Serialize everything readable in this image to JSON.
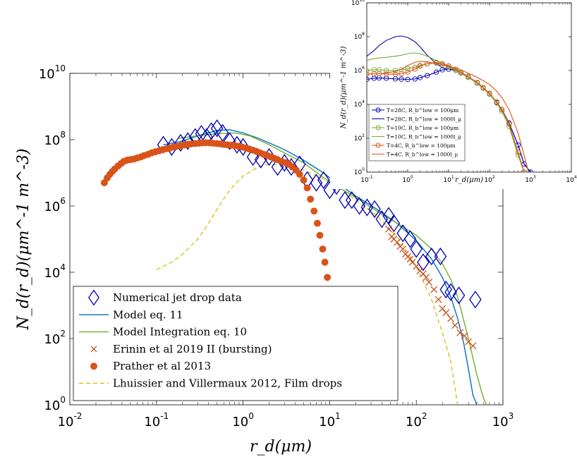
{
  "chart_data": [
    {
      "type": "scatter",
      "xscale": "log",
      "yscale": "log",
      "xlim": [
        0.01,
        1000
      ],
      "ylim": [
        1,
        10000000000.0
      ],
      "x_ticks": [
        0.01,
        0.1,
        1,
        10,
        100,
        1000
      ],
      "y_ticks": [
        1,
        100,
        10000,
        1000000,
        100000000,
        10000000000
      ],
      "x_tick_labels": [
        {
          "base": "10",
          "exp": "-2"
        },
        {
          "base": "10",
          "exp": "-1"
        },
        {
          "base": "10",
          "exp": "0"
        },
        {
          "base": "10",
          "exp": "1"
        },
        {
          "base": "10",
          "exp": "2"
        },
        {
          "base": "10",
          "exp": "3"
        }
      ],
      "y_tick_labels": [
        {
          "base": "10",
          "exp": "0"
        },
        {
          "base": "10",
          "exp": "2"
        },
        {
          "base": "10",
          "exp": "4"
        },
        {
          "base": "10",
          "exp": "6"
        },
        {
          "base": "10",
          "exp": "8"
        },
        {
          "base": "10",
          "exp": "10"
        }
      ],
      "xlabel": "r_d(μm)",
      "ylabel": "N_d(r_d)(μm^-1 m^-3)",
      "legend_position": "bottom-left",
      "series": [
        {
          "name": "Numerical jet drop data",
          "kind": "marker",
          "marker": "diamond-open",
          "color": "#0000b3",
          "x": [
            0.12,
            0.15,
            0.19,
            0.23,
            0.28,
            0.33,
            0.38,
            0.43,
            0.5,
            0.58,
            0.7,
            0.85,
            1.0,
            1.3,
            1.6,
            2.0,
            2.5,
            3.0,
            3.6,
            4.5,
            5.5,
            7.0,
            8.5,
            10,
            12,
            15,
            18,
            22,
            27,
            33,
            40,
            48,
            55,
            70,
            85,
            100,
            120,
            150,
            190,
            220,
            250,
            310,
            480
          ],
          "y": [
            70000000.0,
            60000000.0,
            80000000.0,
            90000000.0,
            120000000.0,
            150000000.0,
            120000000.0,
            180000000.0,
            220000000.0,
            160000000.0,
            90000000.0,
            70000000.0,
            60000000.0,
            30000000.0,
            25000000.0,
            30000000.0,
            15000000.0,
            20000000.0,
            15000000.0,
            18000000.0,
            6000000.0,
            5000000.0,
            6000000.0,
            3000000.0,
            4000000.0,
            1500000.0,
            1500000.0,
            1000000.0,
            900000.0,
            800000.0,
            400000.0,
            500000.0,
            300000.0,
            150000.0,
            100000.0,
            50000.0,
            20000.0,
            30000.0,
            30000.0,
            3000.0,
            2500.0,
            2000.0,
            1500.0
          ]
        },
        {
          "name": "Model eq. 11",
          "kind": "line",
          "color": "#0072bd",
          "x": [
            0.12,
            0.2,
            0.3,
            0.5,
            0.7,
            1.0,
            1.5,
            2,
            3,
            5,
            8,
            12,
            20,
            35,
            60,
            100,
            150,
            200,
            250,
            300,
            350,
            400,
            450,
            500
          ],
          "y": [
            70000000.0,
            90000000.0,
            130000000.0,
            190000000.0,
            200000000.0,
            160000000.0,
            110000000.0,
            80000000.0,
            50000000.0,
            24000000.0,
            11000000.0,
            5000000.0,
            2000000.0,
            800000.0,
            300000.0,
            90000.0,
            25000.0,
            7000,
            1800,
            400,
            80,
            12,
            2,
            1
          ]
        },
        {
          "name": "Model Integration eq. 10",
          "kind": "line",
          "color": "#77ac30",
          "x": [
            0.18,
            0.3,
            0.5,
            0.8,
            1.2,
            2,
            3,
            5,
            8,
            12,
            20,
            35,
            60,
            100,
            150,
            200,
            250,
            300,
            400,
            500,
            600,
            650
          ],
          "y": [
            110000000.0,
            130000000.0,
            150000000.0,
            160000000.0,
            130000000.0,
            70000000.0,
            40000000.0,
            20000000.0,
            8000000.0,
            4000000.0,
            1800000.0,
            700000.0,
            300000.0,
            130000.0,
            50000.0,
            18000.0,
            6000,
            1800,
            100,
            8,
            1.5,
            1
          ]
        },
        {
          "name": "Erinin et al 2019 II (bursting)",
          "kind": "marker",
          "marker": "x",
          "color": "#c8501e",
          "x": [
            48,
            52,
            55,
            60,
            65,
            70,
            75,
            80,
            85,
            90,
            100,
            110,
            120,
            130,
            140,
            160,
            180,
            200,
            220,
            250,
            280,
            320,
            360,
            400,
            450
          ],
          "y": [
            200000.0,
            120000.0,
            100000.0,
            80000.0,
            60000.0,
            50000.0,
            35000.0,
            30000.0,
            25000.0,
            20000.0,
            15000.0,
            11000.0,
            9000,
            7000,
            5000,
            3000,
            1500,
            800,
            600,
            400,
            250,
            150,
            120,
            80,
            60
          ]
        },
        {
          "name": "Prather et al 2013",
          "kind": "marker",
          "marker": "circle-filled",
          "color": "#d95319",
          "x": [
            0.025,
            0.027,
            0.029,
            0.031,
            0.033,
            0.036,
            0.039,
            0.042,
            0.046,
            0.05,
            0.055,
            0.06,
            0.066,
            0.072,
            0.08,
            0.088,
            0.097,
            0.107,
            0.118,
            0.13,
            0.143,
            0.157,
            0.173,
            0.19,
            0.21,
            0.23,
            0.25,
            0.28,
            0.31,
            0.34,
            0.37,
            0.41,
            0.45,
            0.5,
            0.55,
            0.6,
            0.66,
            0.73,
            0.8,
            0.88,
            0.97,
            1.07,
            1.18,
            1.3,
            1.43,
            1.57,
            1.73,
            1.9,
            2.1,
            2.3,
            2.5,
            2.8,
            3.1,
            3.4,
            3.7,
            4.1,
            4.5,
            5.0,
            5.5,
            6.0,
            6.6,
            7.2,
            7.7,
            8.3,
            8.8,
            9.4,
            10.0,
            10.5,
            11.2
          ],
          "y": [
            5000000.0,
            7000000.0,
            9000000.0,
            11000000.0,
            13000000.0,
            16000000.0,
            19000000.0,
            22000000.0,
            24000000.0,
            25000000.0,
            26000000.0,
            28000000.0,
            30000000.0,
            33000000.0,
            36000000.0,
            40000000.0,
            43000000.0,
            46000000.0,
            50000000.0,
            53000000.0,
            56000000.0,
            60000000.0,
            63000000.0,
            66000000.0,
            69000000.0,
            72000000.0,
            74000000.0,
            76000000.0,
            78000000.0,
            80000000.0,
            81000000.0,
            80000000.0,
            78000000.0,
            76000000.0,
            74000000.0,
            72000000.0,
            70000000.0,
            68000000.0,
            66000000.0,
            63000000.0,
            60000000.0,
            56000000.0,
            52000000.0,
            48000000.0,
            44000000.0,
            40000000.0,
            36000000.0,
            33000000.0,
            30000000.0,
            27000000.0,
            25000000.0,
            22000000.0,
            20000000.0,
            18000000.0,
            15000000.0,
            12000000.0,
            9000000.0,
            6000000.0,
            3500000.0,
            1600000.0,
            700000.0,
            300000.0,
            130000.0,
            50000.0,
            20000.0,
            7000,
            3000,
            1000,
            200
          ]
        },
        {
          "name": "Lhuissier and Villermaux 2012, Film drops",
          "kind": "dashed-line",
          "color": "#d6c21a",
          "x": [
            0.1,
            0.15,
            0.2,
            0.3,
            0.4,
            0.5,
            0.7,
            1.0,
            1.5,
            2,
            3,
            5,
            8,
            12,
            20,
            35,
            60,
            100,
            150,
            200,
            250,
            300
          ],
          "y": [
            12000,
            20000,
            35000,
            100000,
            300000,
            800000,
            3000000,
            8000000,
            15000000,
            18000000,
            17000000,
            12000000,
            7000000,
            4000000,
            1500000,
            500000,
            120000,
            15000,
            1500,
            150,
            20,
            1
          ]
        }
      ]
    },
    {
      "type": "line",
      "xscale": "log",
      "yscale": "log",
      "xlim": [
        0.1,
        10000
      ],
      "ylim": [
        1,
        10000000000.0
      ],
      "x_ticks": [
        0.1,
        1,
        10,
        100,
        1000,
        10000
      ],
      "y_ticks": [
        1,
        100,
        10000,
        1000000,
        100000000,
        10000000000
      ],
      "x_tick_labels": [
        {
          "base": "10",
          "exp": "-1"
        },
        {
          "base": "10",
          "exp": "0"
        },
        {
          "base": "10",
          "exp": "1"
        },
        {
          "base": "10",
          "exp": "2"
        },
        {
          "base": "10",
          "exp": "3"
        },
        {
          "base": "10",
          "exp": "4"
        }
      ],
      "y_tick_labels": [
        {
          "base": "10",
          "exp": "0"
        },
        {
          "base": "10",
          "exp": "2"
        },
        {
          "base": "10",
          "exp": "4"
        },
        {
          "base": "10",
          "exp": "6"
        },
        {
          "base": "10",
          "exp": "8"
        },
        {
          "base": "10",
          "exp": "10"
        }
      ],
      "xlabel": "r_d(μm)",
      "ylabel": "N_d(r_d)(μm^-1 m^-3)",
      "legend_position": "bottom-left",
      "series": [
        {
          "name": "T=28C, R_b^low = 100μm",
          "marker": "circle-open",
          "color": "#0000b3",
          "x": [
            0.1,
            0.15,
            0.2,
            0.3,
            0.5,
            0.7,
            1,
            1.5,
            2,
            3,
            5,
            7,
            10,
            15,
            20,
            30,
            50,
            70,
            100,
            150,
            200,
            300,
            500,
            700,
            1000
          ],
          "y": [
            300000.0,
            350000.0,
            360000.0,
            350000.0,
            320000.0,
            310000.0,
            300000.0,
            320000.0,
            380000.0,
            500000.0,
            800000.0,
            1100000.0,
            1200000.0,
            1000000.0,
            700000.0,
            400000.0,
            180000.0,
            90000.0,
            40000.0,
            13000.0,
            5000,
            800,
            40,
            3,
            1
          ]
        },
        {
          "name": "T=28C, R_b^low = 1000l_μ",
          "marker": "none",
          "color": "#0000b3",
          "x": [
            0.1,
            0.15,
            0.2,
            0.3,
            0.5,
            0.7,
            1,
            1.5,
            2,
            3,
            5,
            7,
            10,
            15,
            20,
            30,
            50,
            70,
            100,
            150,
            200,
            300,
            500,
            700,
            1000
          ],
          "y": [
            7000000.0,
            15000000.0,
            30000000.0,
            60000000.0,
            100000000.0,
            110000000.0,
            90000000.0,
            50000000.0,
            25000000.0,
            8000000.0,
            2500000.0,
            1500000.0,
            1200000.0,
            1000000.0,
            700000.0,
            400000.0,
            180000.0,
            90000.0,
            40000.0,
            13000.0,
            5000,
            800,
            40,
            3,
            1
          ]
        },
        {
          "name": "T=10C, R_b^low = 100μm",
          "marker": "circle-open",
          "color": "#77ac30",
          "x": [
            0.1,
            0.15,
            0.2,
            0.3,
            0.5,
            0.7,
            1,
            1.5,
            2,
            3,
            5,
            7,
            10,
            15,
            20,
            30,
            50,
            70,
            100,
            150,
            200,
            300,
            500,
            700
          ],
          "y": [
            1000000.0,
            1100000.0,
            1100000.0,
            1000000.0,
            1000000.0,
            1100000.0,
            1300000.0,
            1600000.0,
            2000000.0,
            2500000.0,
            2700000.0,
            2200000.0,
            1600000.0,
            1000000.0,
            700000.0,
            400000.0,
            180000.0,
            90000.0,
            40000.0,
            12000.0,
            4000,
            500,
            10,
            1
          ]
        },
        {
          "name": "T=10C, R_b^low = 1000l_μ",
          "marker": "none",
          "color": "#77ac30",
          "x": [
            0.1,
            0.15,
            0.2,
            0.3,
            0.5,
            0.7,
            1,
            1.5,
            2,
            3,
            5,
            7,
            10,
            15,
            20,
            30,
            50,
            70,
            100,
            150,
            200,
            300,
            500,
            700
          ],
          "y": [
            4000000.0,
            5000000.0,
            5500000.0,
            6000000.0,
            7000000.0,
            8000000.0,
            10000000.0,
            11000000.0,
            10000000.0,
            7000000.0,
            4000000.0,
            2800000.0,
            1800000.0,
            1100000.0,
            700000.0,
            400000.0,
            180000.0,
            90000.0,
            40000.0,
            12000.0,
            4000,
            500,
            10,
            1
          ]
        },
        {
          "name": "T=4C, R_b^low = 100μm",
          "marker": "circle-open",
          "color": "#d95319",
          "x": [
            0.1,
            0.15,
            0.2,
            0.3,
            0.5,
            0.7,
            1,
            1.5,
            2,
            3,
            5,
            7,
            10,
            15,
            20,
            30,
            50,
            70,
            100,
            150,
            200,
            300,
            500,
            700
          ],
          "y": [
            600000.0,
            650000.0,
            650000.0,
            620000.0,
            600000.0,
            650000.0,
            800000.0,
            1200000.0,
            1800000.0,
            2500000.0,
            3000000.0,
            2600000.0,
            1900000.0,
            1200000.0,
            800000.0,
            450000.0,
            200000.0,
            100000.0,
            45000.0,
            14000.0,
            5000,
            700,
            15,
            1
          ]
        },
        {
          "name": "T=4C, R_b^low = 1000l_μ",
          "marker": "none",
          "color": "#d95319",
          "x": [
            0.1,
            0.15,
            0.2,
            0.3,
            0.5,
            0.7,
            1,
            1.5,
            2,
            3,
            5,
            7,
            10,
            15,
            20,
            30,
            50,
            70,
            100,
            150,
            200,
            300,
            500,
            700,
            900
          ],
          "y": [
            600000.0,
            650000.0,
            650000.0,
            700000.0,
            900000.0,
            1200000.0,
            2000000.0,
            3000000.0,
            3500000.0,
            3200000.0,
            2600000.0,
            2200000.0,
            1800000.0,
            1400000.0,
            1100000.0,
            700000.0,
            400000.0,
            250000.0,
            150000.0,
            60000.0,
            25000.0,
            5000,
            200,
            10,
            1
          ]
        }
      ]
    }
  ]
}
